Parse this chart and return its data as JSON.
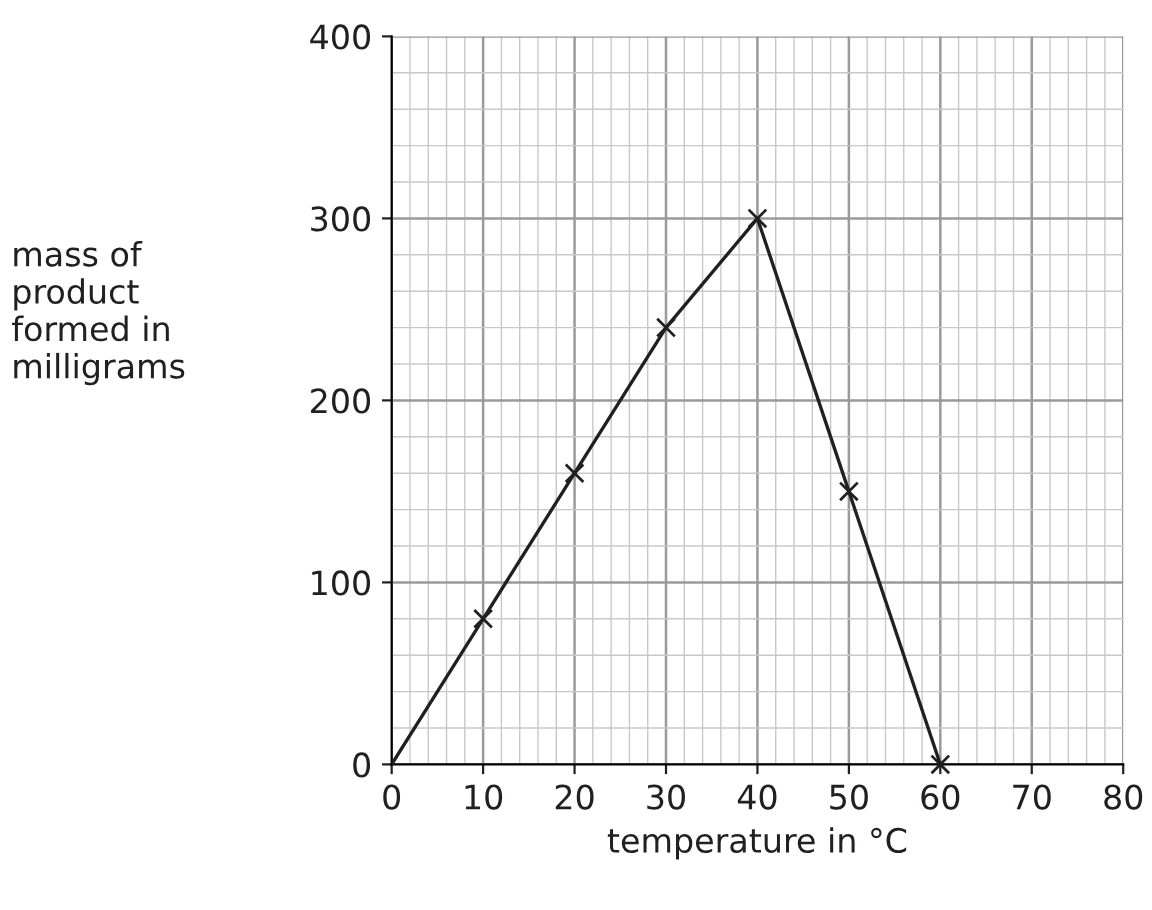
{
  "chart_data": {
    "type": "line",
    "xlabel": "temperature in °C",
    "ylabel": "mass of\nproduct\nformed in\nmilligrams",
    "x": [
      10,
      20,
      30,
      40,
      50,
      60
    ],
    "series": [
      {
        "type": "scatter",
        "color": "#231f20",
        "marker": "cross",
        "values": [
          80,
          160,
          240,
          300,
          150,
          0
        ]
      },
      {
        "color": "#231f20",
        "marker": "none",
        "line_style": "solid",
        "x": [
          0,
          10,
          20,
          30,
          40,
          50,
          60
        ],
        "values": [
          0,
          80,
          160,
          240,
          300,
          150,
          0
        ]
      }
    ],
    "xlim": [
      0,
      80
    ],
    "ylim": [
      0,
      400
    ],
    "xticks": [
      0,
      10,
      20,
      30,
      40,
      50,
      60,
      70,
      80
    ],
    "yticks": [
      0,
      100,
      200,
      300,
      400
    ],
    "grid": true,
    "legend": false
  }
}
